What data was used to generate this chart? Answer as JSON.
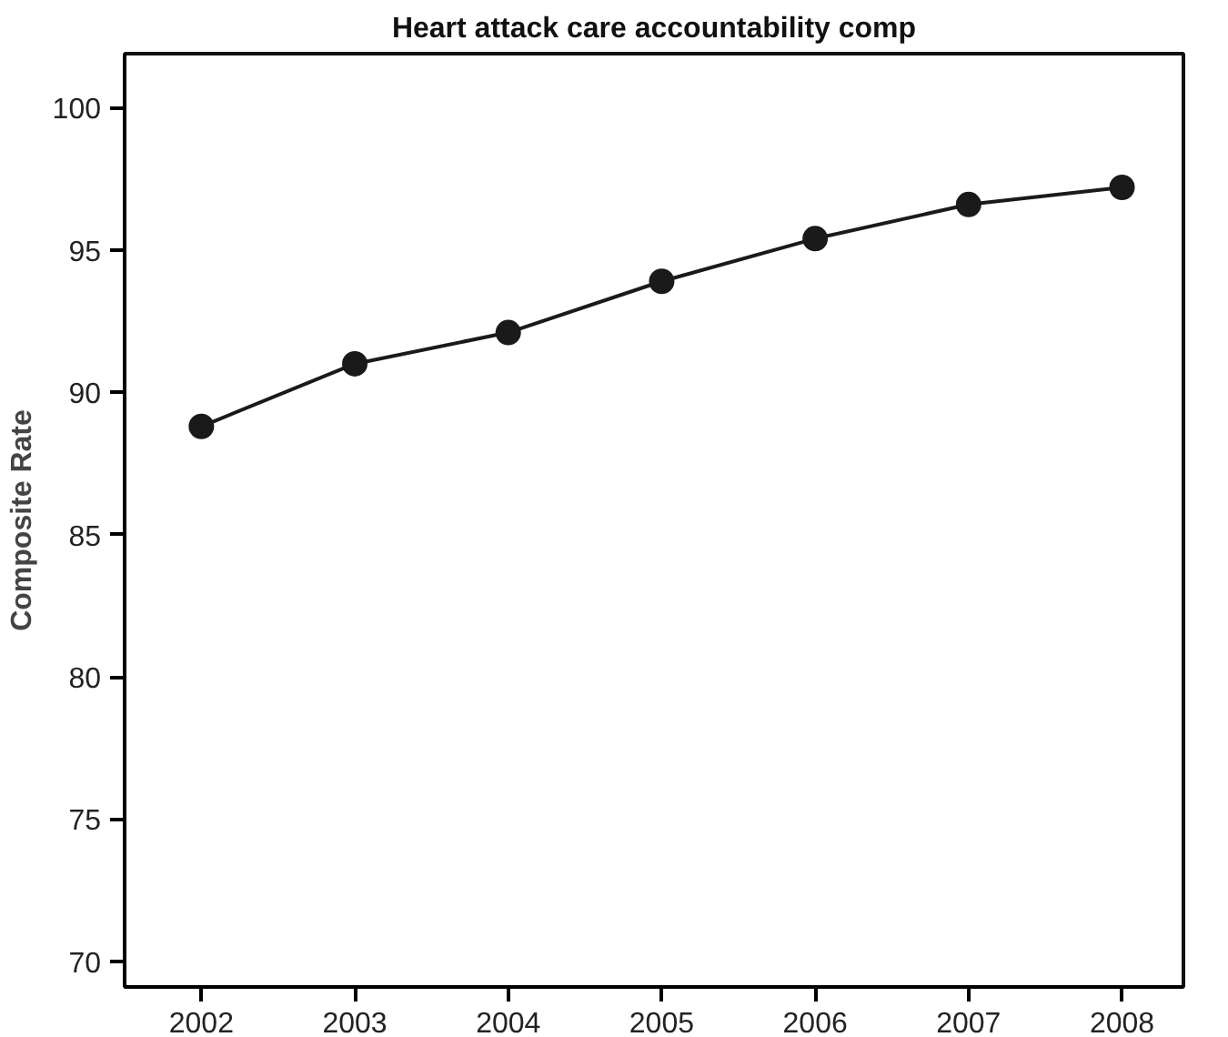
{
  "chart_data": {
    "type": "line",
    "title": "Heart attack care accountability comp",
    "ylabel": "Composite Rate",
    "x": [
      2002,
      2003,
      2004,
      2005,
      2006,
      2007,
      2008
    ],
    "series": [
      {
        "color": "#1a1a1a",
        "values": [
          88.8,
          91.0,
          92.1,
          93.9,
          95.4,
          96.6,
          97.2
        ]
      }
    ],
    "xlim": [
      2001.5,
      2008.4
    ],
    "ylim": [
      69.1,
      101.9
    ],
    "xticks": [
      2002,
      2003,
      2004,
      2005,
      2006,
      2007,
      2008
    ],
    "yticks": [
      70,
      75,
      80,
      85,
      90,
      95,
      100
    ],
    "grid": false,
    "marker": "circle",
    "line_style": "solid"
  }
}
